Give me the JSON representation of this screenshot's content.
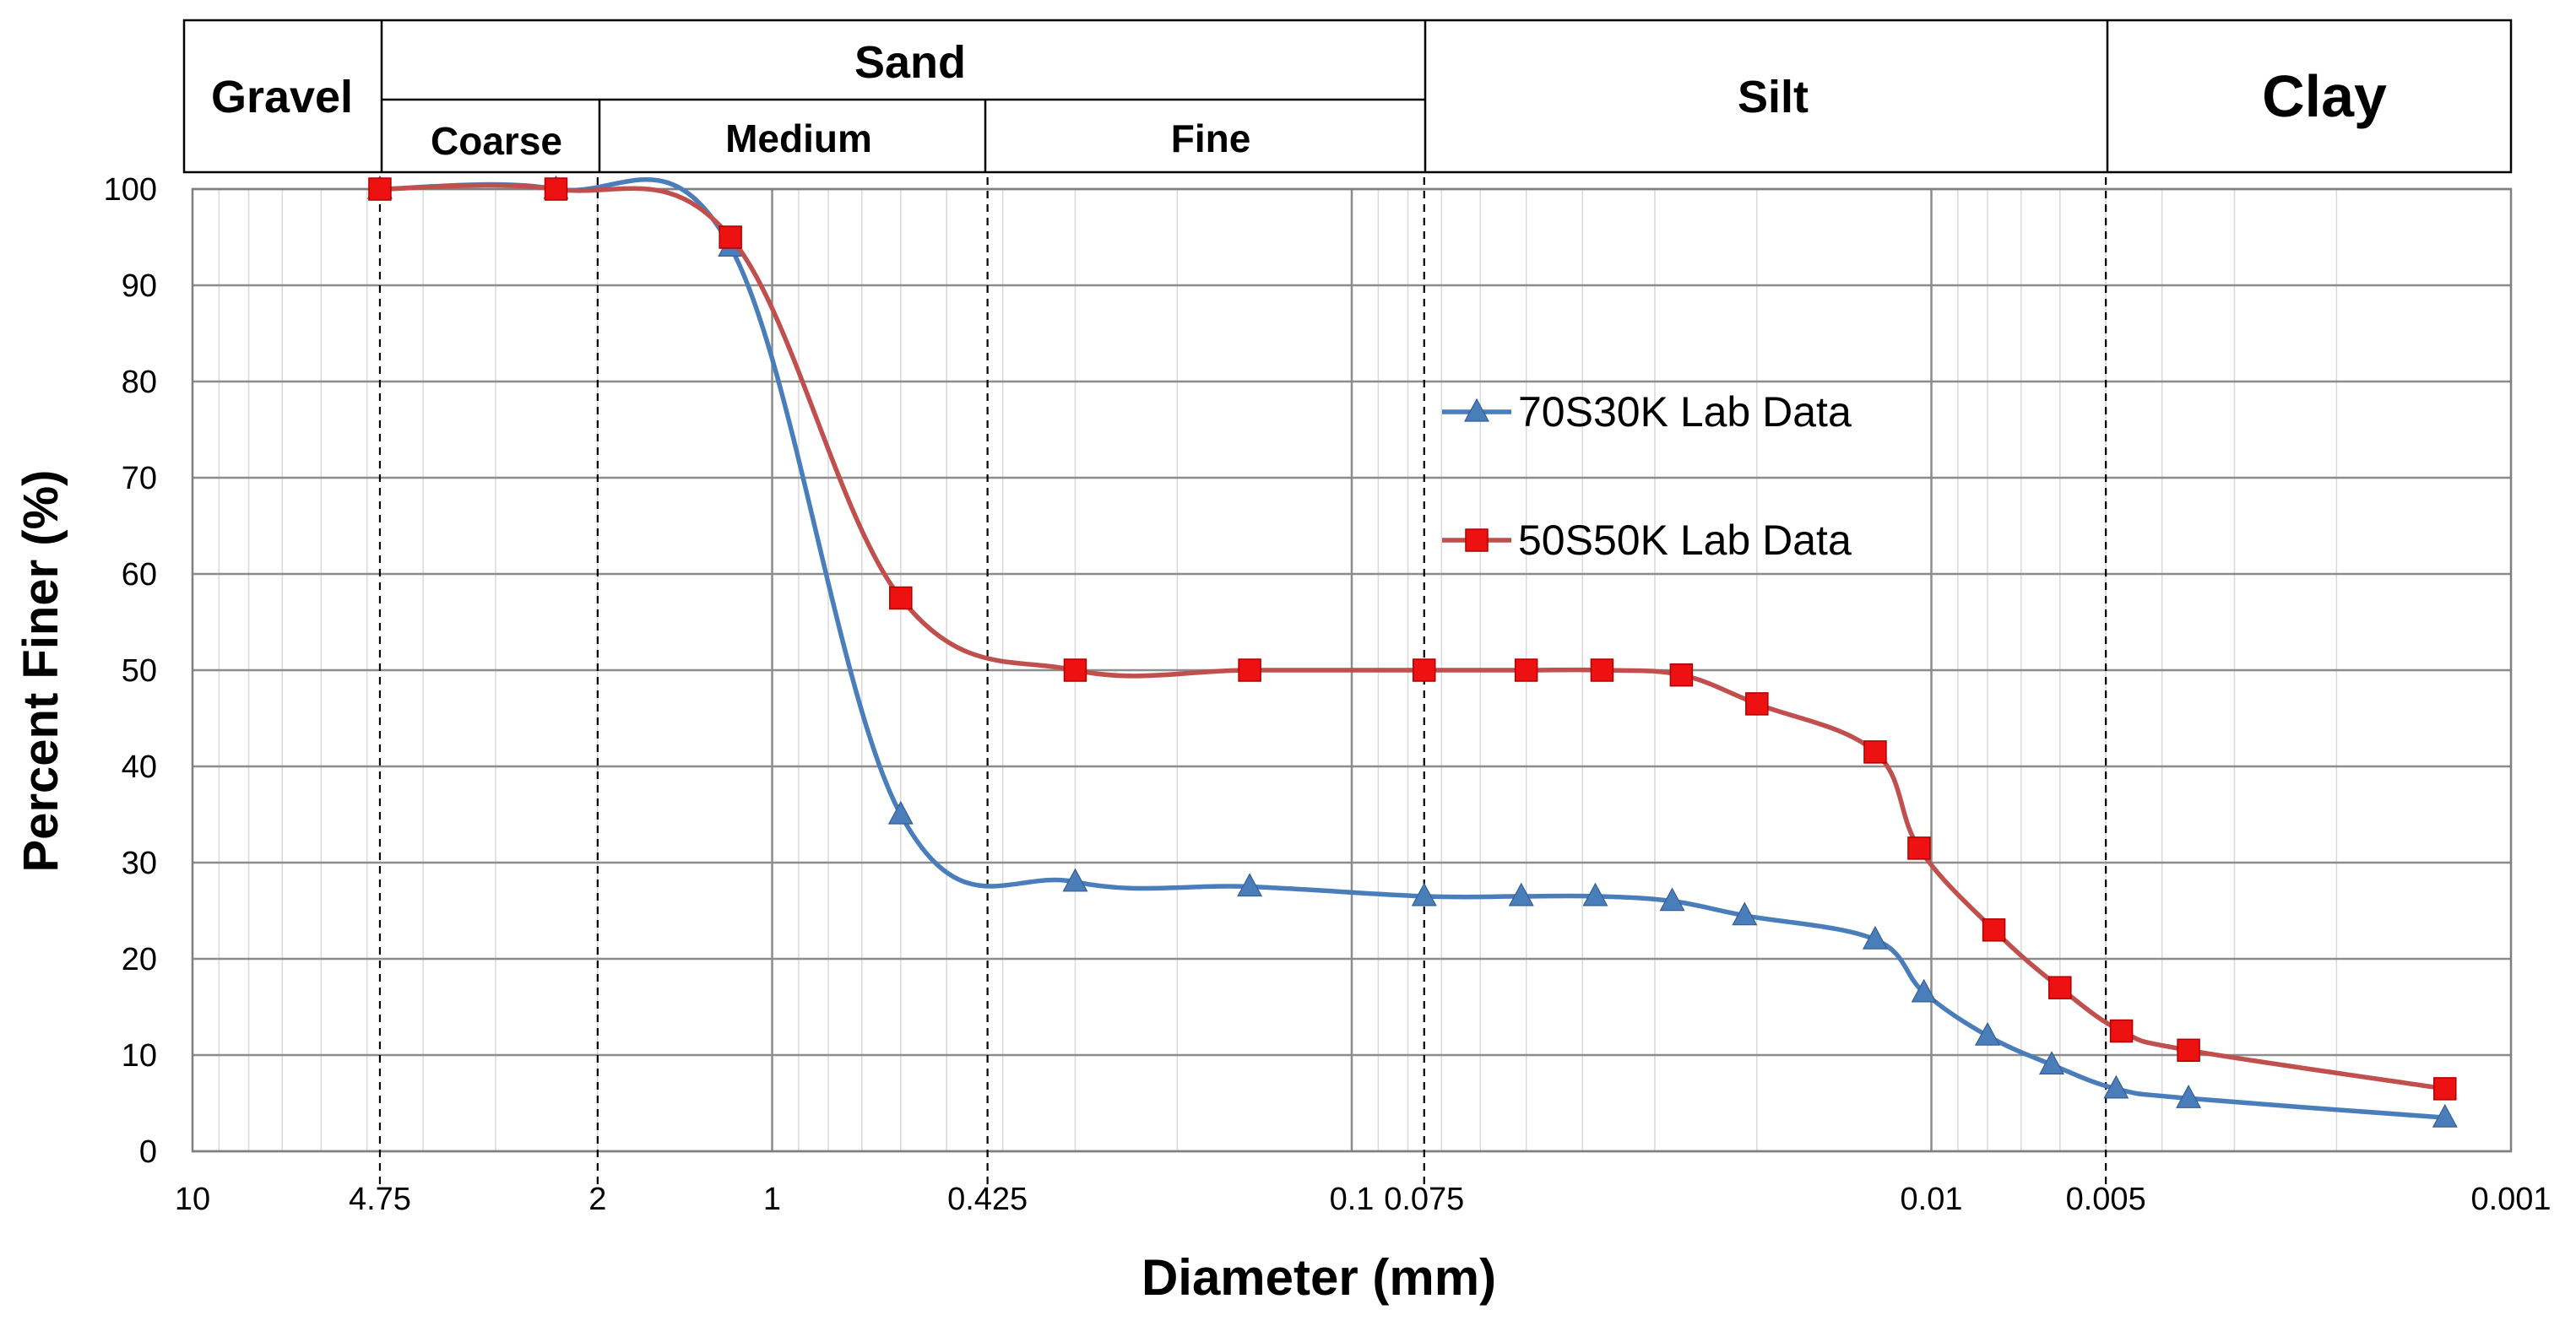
{
  "classification": {
    "gravel": "Gravel",
    "sand": "Sand",
    "coarse": "Coarse",
    "medium": "Medium",
    "fine": "Fine",
    "silt": "Silt",
    "clay": "Clay"
  },
  "chart_data": {
    "type": "line",
    "xscale": "log-reversed",
    "xlim": [
      10,
      0.001
    ],
    "ylim": [
      0,
      100
    ],
    "xlabel": "Diameter (mm)",
    "ylabel": "Percent Finer (%)",
    "yticks": [
      "0",
      "10",
      "20",
      "30",
      "40",
      "50",
      "60",
      "70",
      "80",
      "90",
      "100"
    ],
    "xticks": [
      {
        "value": 10,
        "label": "10"
      },
      {
        "value": 4.75,
        "label": "4.75"
      },
      {
        "value": 2,
        "label": "2"
      },
      {
        "value": 1,
        "label": "1"
      },
      {
        "value": 0.425,
        "label": "0.425"
      },
      {
        "value": 0.1,
        "label": "0.1"
      },
      {
        "value": 0.075,
        "label": "0.075"
      },
      {
        "value": 0.01,
        "label": "0.01"
      },
      {
        "value": 0.005,
        "label": "0.005"
      },
      {
        "value": 0.001,
        "label": "0.001"
      }
    ],
    "boundaries": [
      4.75,
      2,
      0.425,
      0.075,
      0.005
    ],
    "series": [
      {
        "name": "70S30K Lab Data",
        "color": "#4A7EBB",
        "marker": "triangle",
        "x": [
          4.75,
          2.36,
          1.18,
          0.6,
          0.3,
          0.15,
          0.075,
          0.051,
          0.038,
          0.028,
          0.021,
          0.0125,
          0.0103,
          0.008,
          0.0062,
          0.0048,
          0.0036,
          0.0013
        ],
        "y": [
          100,
          100,
          94,
          35,
          28,
          27.5,
          26.5,
          26.5,
          26.5,
          26,
          24.5,
          22,
          16.5,
          12,
          9,
          6.5,
          5.5,
          3.5
        ]
      },
      {
        "name": "50S50K Lab Data",
        "color": "#C0504D",
        "marker": "square",
        "x": [
          4.75,
          2.36,
          1.18,
          0.6,
          0.3,
          0.15,
          0.075,
          0.05,
          0.037,
          0.027,
          0.02,
          0.0125,
          0.0105,
          0.0078,
          0.006,
          0.0047,
          0.0036,
          0.0013
        ],
        "y": [
          100,
          100,
          95,
          57.5,
          50,
          50,
          50,
          50,
          50,
          49.5,
          46.5,
          41.5,
          31.5,
          23,
          17,
          12.5,
          10.5,
          6.5
        ]
      }
    ]
  }
}
